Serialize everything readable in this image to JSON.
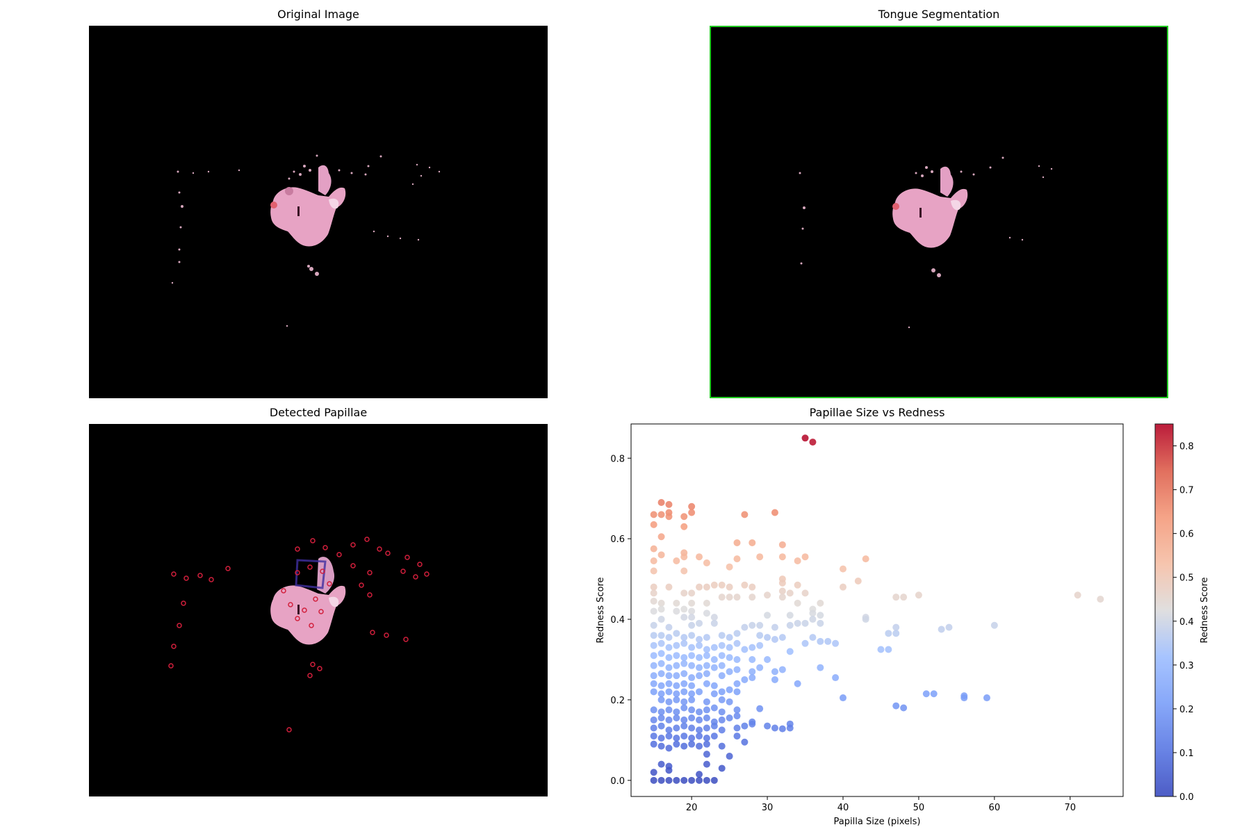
{
  "panels": {
    "original_title": "Original Image",
    "segmentation_title": "Tongue Segmentation",
    "papillae_title": "Detected Papillae",
    "scatter_title": "Papillae Size vs Redness"
  },
  "colors": {
    "segmentation_border": "#22cc22",
    "tongue_pink": "#e7a3c4",
    "papilla_marker": "#d21f3c",
    "colormap": "coolwarm"
  },
  "chart_data": {
    "type": "scatter",
    "title": "Papillae Size vs Redness",
    "xlabel": "Papilla Size (pixels)",
    "ylabel": "Redness Score",
    "xlim": [
      12,
      77
    ],
    "ylim": [
      -0.04,
      0.885
    ],
    "xticks": [
      20,
      30,
      40,
      50,
      60,
      70
    ],
    "yticks": [
      0.0,
      0.2,
      0.4,
      0.6,
      0.8
    ],
    "colorbar": {
      "label": "Redness Score",
      "range": [
        0.0,
        0.85
      ],
      "ticks": [
        0.0,
        0.1,
        0.2,
        0.3,
        0.4,
        0.5,
        0.6,
        0.7,
        0.8
      ]
    },
    "points": [
      {
        "x": 35,
        "y": 0.85
      },
      {
        "x": 36,
        "y": 0.84
      },
      {
        "x": 16,
        "y": 0.69
      },
      {
        "x": 17,
        "y": 0.685
      },
      {
        "x": 15,
        "y": 0.66
      },
      {
        "x": 16,
        "y": 0.66
      },
      {
        "x": 17,
        "y": 0.665
      },
      {
        "x": 17,
        "y": 0.655
      },
      {
        "x": 19,
        "y": 0.655
      },
      {
        "x": 20,
        "y": 0.68
      },
      {
        "x": 20,
        "y": 0.665
      },
      {
        "x": 27,
        "y": 0.66
      },
      {
        "x": 31,
        "y": 0.665
      },
      {
        "x": 15,
        "y": 0.635
      },
      {
        "x": 19,
        "y": 0.63
      },
      {
        "x": 16,
        "y": 0.605
      },
      {
        "x": 15,
        "y": 0.575
      },
      {
        "x": 16,
        "y": 0.56
      },
      {
        "x": 19,
        "y": 0.565
      },
      {
        "x": 19,
        "y": 0.555
      },
      {
        "x": 21,
        "y": 0.555
      },
      {
        "x": 26,
        "y": 0.59
      },
      {
        "x": 28,
        "y": 0.59
      },
      {
        "x": 32,
        "y": 0.585
      },
      {
        "x": 15,
        "y": 0.545
      },
      {
        "x": 18,
        "y": 0.545
      },
      {
        "x": 22,
        "y": 0.54
      },
      {
        "x": 25,
        "y": 0.53
      },
      {
        "x": 26,
        "y": 0.55
      },
      {
        "x": 29,
        "y": 0.555
      },
      {
        "x": 32,
        "y": 0.555
      },
      {
        "x": 34,
        "y": 0.545
      },
      {
        "x": 35,
        "y": 0.555
      },
      {
        "x": 43,
        "y": 0.55
      },
      {
        "x": 15,
        "y": 0.52
      },
      {
        "x": 19,
        "y": 0.52
      },
      {
        "x": 40,
        "y": 0.525
      },
      {
        "x": 42,
        "y": 0.495
      },
      {
        "x": 32,
        "y": 0.5
      },
      {
        "x": 32,
        "y": 0.49
      },
      {
        "x": 34,
        "y": 0.485
      },
      {
        "x": 28,
        "y": 0.48
      },
      {
        "x": 27,
        "y": 0.485
      },
      {
        "x": 15,
        "y": 0.48
      },
      {
        "x": 17,
        "y": 0.48
      },
      {
        "x": 21,
        "y": 0.48
      },
      {
        "x": 22,
        "y": 0.48
      },
      {
        "x": 23,
        "y": 0.485
      },
      {
        "x": 24,
        "y": 0.485
      },
      {
        "x": 25,
        "y": 0.48
      },
      {
        "x": 40,
        "y": 0.48
      },
      {
        "x": 32,
        "y": 0.47
      },
      {
        "x": 15,
        "y": 0.465
      },
      {
        "x": 19,
        "y": 0.465
      },
      {
        "x": 20,
        "y": 0.465
      },
      {
        "x": 24,
        "y": 0.455
      },
      {
        "x": 25,
        "y": 0.455
      },
      {
        "x": 26,
        "y": 0.455
      },
      {
        "x": 28,
        "y": 0.455
      },
      {
        "x": 30,
        "y": 0.46
      },
      {
        "x": 32,
        "y": 0.455
      },
      {
        "x": 33,
        "y": 0.465
      },
      {
        "x": 35,
        "y": 0.465
      },
      {
        "x": 47,
        "y": 0.455
      },
      {
        "x": 48,
        "y": 0.455
      },
      {
        "x": 50,
        "y": 0.46
      },
      {
        "x": 71,
        "y": 0.46
      },
      {
        "x": 74,
        "y": 0.45
      },
      {
        "x": 15,
        "y": 0.445
      },
      {
        "x": 16,
        "y": 0.44
      },
      {
        "x": 18,
        "y": 0.44
      },
      {
        "x": 20,
        "y": 0.44
      },
      {
        "x": 22,
        "y": 0.44
      },
      {
        "x": 37,
        "y": 0.44
      },
      {
        "x": 34,
        "y": 0.44
      },
      {
        "x": 36,
        "y": 0.425
      },
      {
        "x": 36,
        "y": 0.415
      },
      {
        "x": 15,
        "y": 0.42
      },
      {
        "x": 16,
        "y": 0.425
      },
      {
        "x": 18,
        "y": 0.42
      },
      {
        "x": 19,
        "y": 0.425
      },
      {
        "x": 20,
        "y": 0.42
      },
      {
        "x": 22,
        "y": 0.415
      },
      {
        "x": 16,
        "y": 0.4
      },
      {
        "x": 19,
        "y": 0.405
      },
      {
        "x": 20,
        "y": 0.405
      },
      {
        "x": 23,
        "y": 0.405
      },
      {
        "x": 30,
        "y": 0.41
      },
      {
        "x": 33,
        "y": 0.41
      },
      {
        "x": 36,
        "y": 0.4
      },
      {
        "x": 37,
        "y": 0.41
      },
      {
        "x": 43,
        "y": 0.405
      },
      {
        "x": 43,
        "y": 0.4
      },
      {
        "x": 15,
        "y": 0.385
      },
      {
        "x": 17,
        "y": 0.38
      },
      {
        "x": 20,
        "y": 0.385
      },
      {
        "x": 21,
        "y": 0.39
      },
      {
        "x": 23,
        "y": 0.39
      },
      {
        "x": 27,
        "y": 0.38
      },
      {
        "x": 28,
        "y": 0.385
      },
      {
        "x": 29,
        "y": 0.385
      },
      {
        "x": 31,
        "y": 0.38
      },
      {
        "x": 33,
        "y": 0.385
      },
      {
        "x": 34,
        "y": 0.39
      },
      {
        "x": 35,
        "y": 0.39
      },
      {
        "x": 37,
        "y": 0.39
      },
      {
        "x": 47,
        "y": 0.38
      },
      {
        "x": 53,
        "y": 0.375
      },
      {
        "x": 54,
        "y": 0.38
      },
      {
        "x": 60,
        "y": 0.385
      },
      {
        "x": 46,
        "y": 0.365
      },
      {
        "x": 47,
        "y": 0.365
      },
      {
        "x": 15,
        "y": 0.36
      },
      {
        "x": 16,
        "y": 0.36
      },
      {
        "x": 17,
        "y": 0.355
      },
      {
        "x": 18,
        "y": 0.365
      },
      {
        "x": 19,
        "y": 0.355
      },
      {
        "x": 20,
        "y": 0.36
      },
      {
        "x": 21,
        "y": 0.35
      },
      {
        "x": 22,
        "y": 0.355
      },
      {
        "x": 24,
        "y": 0.36
      },
      {
        "x": 25,
        "y": 0.355
      },
      {
        "x": 26,
        "y": 0.365
      },
      {
        "x": 29,
        "y": 0.36
      },
      {
        "x": 30,
        "y": 0.355
      },
      {
        "x": 31,
        "y": 0.35
      },
      {
        "x": 32,
        "y": 0.355
      },
      {
        "x": 35,
        "y": 0.34
      },
      {
        "x": 36,
        "y": 0.355
      },
      {
        "x": 37,
        "y": 0.345
      },
      {
        "x": 38,
        "y": 0.345
      },
      {
        "x": 39,
        "y": 0.34
      },
      {
        "x": 45,
        "y": 0.325
      },
      {
        "x": 46,
        "y": 0.325
      },
      {
        "x": 15,
        "y": 0.335
      },
      {
        "x": 16,
        "y": 0.34
      },
      {
        "x": 17,
        "y": 0.33
      },
      {
        "x": 18,
        "y": 0.335
      },
      {
        "x": 19,
        "y": 0.34
      },
      {
        "x": 20,
        "y": 0.33
      },
      {
        "x": 21,
        "y": 0.335
      },
      {
        "x": 22,
        "y": 0.325
      },
      {
        "x": 23,
        "y": 0.33
      },
      {
        "x": 24,
        "y": 0.335
      },
      {
        "x": 25,
        "y": 0.33
      },
      {
        "x": 26,
        "y": 0.34
      },
      {
        "x": 27,
        "y": 0.325
      },
      {
        "x": 28,
        "y": 0.33
      },
      {
        "x": 29,
        "y": 0.335
      },
      {
        "x": 33,
        "y": 0.32
      },
      {
        "x": 15,
        "y": 0.31
      },
      {
        "x": 16,
        "y": 0.315
      },
      {
        "x": 17,
        "y": 0.305
      },
      {
        "x": 18,
        "y": 0.31
      },
      {
        "x": 19,
        "y": 0.305
      },
      {
        "x": 20,
        "y": 0.31
      },
      {
        "x": 21,
        "y": 0.305
      },
      {
        "x": 22,
        "y": 0.31
      },
      {
        "x": 23,
        "y": 0.3
      },
      {
        "x": 24,
        "y": 0.31
      },
      {
        "x": 25,
        "y": 0.305
      },
      {
        "x": 26,
        "y": 0.3
      },
      {
        "x": 28,
        "y": 0.3
      },
      {
        "x": 30,
        "y": 0.3
      },
      {
        "x": 15,
        "y": 0.285
      },
      {
        "x": 16,
        "y": 0.29
      },
      {
        "x": 17,
        "y": 0.28
      },
      {
        "x": 18,
        "y": 0.285
      },
      {
        "x": 19,
        "y": 0.29
      },
      {
        "x": 20,
        "y": 0.285
      },
      {
        "x": 21,
        "y": 0.28
      },
      {
        "x": 22,
        "y": 0.285
      },
      {
        "x": 23,
        "y": 0.28
      },
      {
        "x": 24,
        "y": 0.285
      },
      {
        "x": 25,
        "y": 0.27
      },
      {
        "x": 26,
        "y": 0.275
      },
      {
        "x": 28,
        "y": 0.27
      },
      {
        "x": 29,
        "y": 0.28
      },
      {
        "x": 31,
        "y": 0.27
      },
      {
        "x": 32,
        "y": 0.275
      },
      {
        "x": 37,
        "y": 0.28
      },
      {
        "x": 15,
        "y": 0.26
      },
      {
        "x": 16,
        "y": 0.265
      },
      {
        "x": 17,
        "y": 0.26
      },
      {
        "x": 18,
        "y": 0.26
      },
      {
        "x": 19,
        "y": 0.265
      },
      {
        "x": 20,
        "y": 0.255
      },
      {
        "x": 21,
        "y": 0.26
      },
      {
        "x": 22,
        "y": 0.265
      },
      {
        "x": 24,
        "y": 0.26
      },
      {
        "x": 27,
        "y": 0.25
      },
      {
        "x": 28,
        "y": 0.255
      },
      {
        "x": 31,
        "y": 0.25
      },
      {
        "x": 34,
        "y": 0.24
      },
      {
        "x": 39,
        "y": 0.255
      },
      {
        "x": 15,
        "y": 0.24
      },
      {
        "x": 16,
        "y": 0.235
      },
      {
        "x": 17,
        "y": 0.24
      },
      {
        "x": 18,
        "y": 0.235
      },
      {
        "x": 19,
        "y": 0.24
      },
      {
        "x": 20,
        "y": 0.235
      },
      {
        "x": 22,
        "y": 0.24
      },
      {
        "x": 23,
        "y": 0.235
      },
      {
        "x": 26,
        "y": 0.24
      },
      {
        "x": 15,
        "y": 0.22
      },
      {
        "x": 16,
        "y": 0.215
      },
      {
        "x": 17,
        "y": 0.22
      },
      {
        "x": 18,
        "y": 0.215
      },
      {
        "x": 19,
        "y": 0.22
      },
      {
        "x": 20,
        "y": 0.215
      },
      {
        "x": 21,
        "y": 0.22
      },
      {
        "x": 23,
        "y": 0.215
      },
      {
        "x": 24,
        "y": 0.22
      },
      {
        "x": 25,
        "y": 0.225
      },
      {
        "x": 26,
        "y": 0.22
      },
      {
        "x": 40,
        "y": 0.205
      },
      {
        "x": 51,
        "y": 0.215
      },
      {
        "x": 52,
        "y": 0.215
      },
      {
        "x": 56,
        "y": 0.21
      },
      {
        "x": 56,
        "y": 0.205
      },
      {
        "x": 59,
        "y": 0.205
      },
      {
        "x": 16,
        "y": 0.2
      },
      {
        "x": 17,
        "y": 0.195
      },
      {
        "x": 18,
        "y": 0.2
      },
      {
        "x": 19,
        "y": 0.195
      },
      {
        "x": 20,
        "y": 0.2
      },
      {
        "x": 22,
        "y": 0.195
      },
      {
        "x": 24,
        "y": 0.2
      },
      {
        "x": 25,
        "y": 0.195
      },
      {
        "x": 47,
        "y": 0.185
      },
      {
        "x": 48,
        "y": 0.18
      },
      {
        "x": 15,
        "y": 0.175
      },
      {
        "x": 16,
        "y": 0.17
      },
      {
        "x": 17,
        "y": 0.175
      },
      {
        "x": 18,
        "y": 0.17
      },
      {
        "x": 19,
        "y": 0.18
      },
      {
        "x": 20,
        "y": 0.175
      },
      {
        "x": 21,
        "y": 0.17
      },
      {
        "x": 22,
        "y": 0.175
      },
      {
        "x": 23,
        "y": 0.18
      },
      {
        "x": 24,
        "y": 0.17
      },
      {
        "x": 26,
        "y": 0.175
      },
      {
        "x": 29,
        "y": 0.178
      },
      {
        "x": 15,
        "y": 0.15
      },
      {
        "x": 16,
        "y": 0.155
      },
      {
        "x": 17,
        "y": 0.15
      },
      {
        "x": 18,
        "y": 0.155
      },
      {
        "x": 19,
        "y": 0.15
      },
      {
        "x": 20,
        "y": 0.155
      },
      {
        "x": 21,
        "y": 0.15
      },
      {
        "x": 22,
        "y": 0.155
      },
      {
        "x": 23,
        "y": 0.145
      },
      {
        "x": 24,
        "y": 0.15
      },
      {
        "x": 25,
        "y": 0.155
      },
      {
        "x": 26,
        "y": 0.16
      },
      {
        "x": 28,
        "y": 0.145
      },
      {
        "x": 15,
        "y": 0.13
      },
      {
        "x": 16,
        "y": 0.135
      },
      {
        "x": 17,
        "y": 0.125
      },
      {
        "x": 18,
        "y": 0.13
      },
      {
        "x": 19,
        "y": 0.135
      },
      {
        "x": 20,
        "y": 0.13
      },
      {
        "x": 21,
        "y": 0.125
      },
      {
        "x": 22,
        "y": 0.13
      },
      {
        "x": 23,
        "y": 0.135
      },
      {
        "x": 24,
        "y": 0.125
      },
      {
        "x": 26,
        "y": 0.13
      },
      {
        "x": 27,
        "y": 0.135
      },
      {
        "x": 28,
        "y": 0.14
      },
      {
        "x": 30,
        "y": 0.135
      },
      {
        "x": 31,
        "y": 0.13
      },
      {
        "x": 32,
        "y": 0.128
      },
      {
        "x": 33,
        "y": 0.14
      },
      {
        "x": 33,
        "y": 0.13
      },
      {
        "x": 15,
        "y": 0.11
      },
      {
        "x": 16,
        "y": 0.105
      },
      {
        "x": 17,
        "y": 0.11
      },
      {
        "x": 18,
        "y": 0.105
      },
      {
        "x": 19,
        "y": 0.11
      },
      {
        "x": 20,
        "y": 0.105
      },
      {
        "x": 21,
        "y": 0.11
      },
      {
        "x": 22,
        "y": 0.105
      },
      {
        "x": 23,
        "y": 0.11
      },
      {
        "x": 26,
        "y": 0.11
      },
      {
        "x": 15,
        "y": 0.09
      },
      {
        "x": 16,
        "y": 0.085
      },
      {
        "x": 17,
        "y": 0.08
      },
      {
        "x": 18,
        "y": 0.09
      },
      {
        "x": 19,
        "y": 0.085
      },
      {
        "x": 20,
        "y": 0.09
      },
      {
        "x": 21,
        "y": 0.085
      },
      {
        "x": 22,
        "y": 0.09
      },
      {
        "x": 24,
        "y": 0.085
      },
      {
        "x": 27,
        "y": 0.095
      },
      {
        "x": 22,
        "y": 0.065
      },
      {
        "x": 25,
        "y": 0.06
      },
      {
        "x": 16,
        "y": 0.04
      },
      {
        "x": 17,
        "y": 0.035
      },
      {
        "x": 22,
        "y": 0.04
      },
      {
        "x": 24,
        "y": 0.03
      },
      {
        "x": 15,
        "y": 0.02
      },
      {
        "x": 17,
        "y": 0.025
      },
      {
        "x": 21,
        "y": 0.015
      },
      {
        "x": 15,
        "y": 0.0
      },
      {
        "x": 16,
        "y": 0.0
      },
      {
        "x": 17,
        "y": 0.0
      },
      {
        "x": 18,
        "y": 0.0
      },
      {
        "x": 19,
        "y": 0.0
      },
      {
        "x": 20,
        "y": 0.0
      },
      {
        "x": 21,
        "y": 0.0
      },
      {
        "x": 22,
        "y": 0.0
      },
      {
        "x": 23,
        "y": 0.0
      }
    ]
  }
}
